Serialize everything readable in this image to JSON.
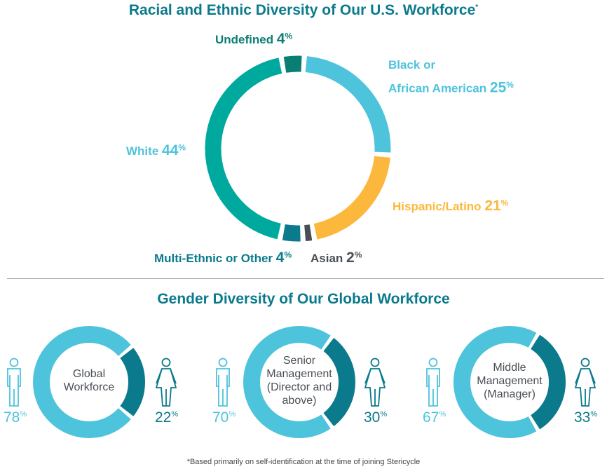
{
  "chart_data": [
    {
      "type": "pie",
      "style": "donut",
      "title": "Racial and Ethnic Diversity of Our U.S. Workforce",
      "title_mark": "*",
      "percent_sign": "%",
      "slices": [
        {
          "label": "Black or",
          "label2": "African American",
          "value": 25,
          "color": "#4ec3dc"
        },
        {
          "label": "Hispanic/Latino",
          "value": 21,
          "color": "#fcb83c"
        },
        {
          "label": "Asian",
          "value": 2,
          "color": "#4a4f55"
        },
        {
          "label": "Multi-Ethnic or Other",
          "value": 4,
          "color": "#0a7a8c"
        },
        {
          "label": "White",
          "value": 44,
          "color": "#00a99d"
        },
        {
          "label": "Undefined",
          "value": 4,
          "color": "#0b7e74"
        }
      ]
    },
    {
      "type": "pie",
      "style": "donut-group",
      "title": "Gender Diversity of Our Global Workforce",
      "colors": {
        "male": "#4ec3dc",
        "female": "#0a7a8c"
      },
      "groups": [
        {
          "lines": [
            "Global",
            "Workforce"
          ],
          "male": 78,
          "female": 22
        },
        {
          "lines": [
            "Senior",
            "Management",
            "(Director and",
            "above)"
          ],
          "male": 70,
          "female": 30
        },
        {
          "lines": [
            "Middle",
            "Management",
            "(Manager)"
          ],
          "male": 67,
          "female": 33
        }
      ]
    }
  ],
  "footnote": "*Based primarily on self-identification at the time of joining Stericycle"
}
